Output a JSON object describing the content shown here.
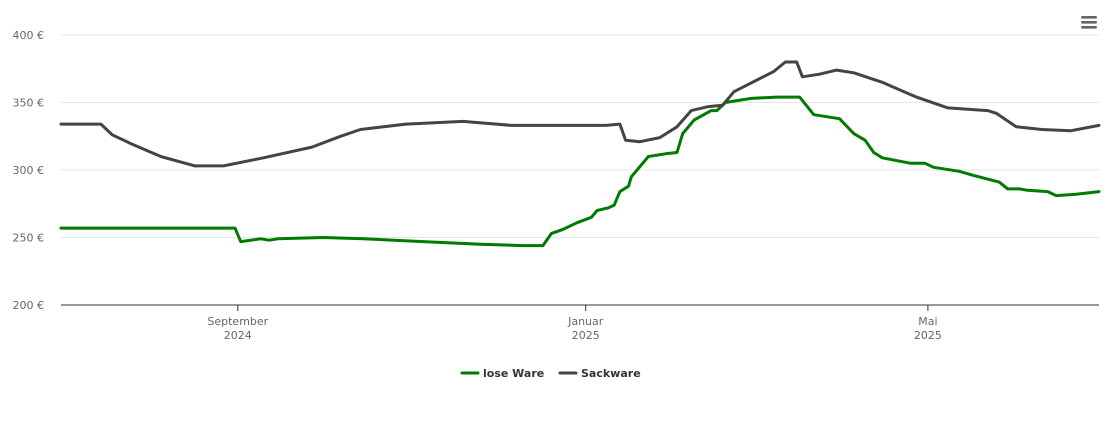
{
  "chart_data": {
    "type": "line",
    "yticks": [
      "200 €",
      "250 €",
      "300 €",
      "350 €",
      "400 €"
    ],
    "ylim": [
      200,
      400
    ],
    "xlim": [
      "2024-07-01",
      "2025-06-30"
    ],
    "xticks": [
      {
        "month": "September",
        "year": "2024",
        "date": "2024-09-01"
      },
      {
        "month": "Januar",
        "year": "2025",
        "date": "2025-01-01"
      },
      {
        "month": "Mai",
        "year": "2025",
        "date": "2025-05-01"
      }
    ],
    "grid": true,
    "legend_position": "bottom-center",
    "series": [
      {
        "name": "lose Ware",
        "color": "#007a00",
        "points": [
          [
            "2024-07-01",
            257
          ],
          [
            "2024-08-31",
            257
          ],
          [
            "2024-09-02",
            247
          ],
          [
            "2024-09-09",
            249
          ],
          [
            "2024-09-12",
            248
          ],
          [
            "2024-09-15",
            249
          ],
          [
            "2024-10-01",
            250
          ],
          [
            "2024-10-15",
            249
          ],
          [
            "2024-11-05",
            247
          ],
          [
            "2024-11-25",
            245
          ],
          [
            "2024-12-10",
            244
          ],
          [
            "2024-12-17",
            244
          ],
          [
            "2024-12-20",
            253
          ],
          [
            "2024-12-24",
            256
          ],
          [
            "2024-12-29",
            261
          ],
          [
            "2025-01-03",
            265
          ],
          [
            "2025-01-05",
            270
          ],
          [
            "2025-01-09",
            272
          ],
          [
            "2025-01-11",
            274
          ],
          [
            "2025-01-13",
            284
          ],
          [
            "2025-01-16",
            288
          ],
          [
            "2025-01-17",
            295
          ],
          [
            "2025-01-23",
            310
          ],
          [
            "2025-01-29",
            312
          ],
          [
            "2025-02-02",
            313
          ],
          [
            "2025-02-04",
            327
          ],
          [
            "2025-02-08",
            337
          ],
          [
            "2025-02-14",
            344
          ],
          [
            "2025-02-16",
            344
          ],
          [
            "2025-02-19",
            350
          ],
          [
            "2025-02-28",
            353
          ],
          [
            "2025-03-09",
            354
          ],
          [
            "2025-03-17",
            354
          ],
          [
            "2025-03-22",
            341
          ],
          [
            "2025-03-31",
            338
          ],
          [
            "2025-04-05",
            327
          ],
          [
            "2025-04-09",
            322
          ],
          [
            "2025-04-12",
            313
          ],
          [
            "2025-04-15",
            309
          ],
          [
            "2025-04-25",
            305
          ],
          [
            "2025-04-30",
            305
          ],
          [
            "2025-05-03",
            302
          ],
          [
            "2025-05-12",
            299
          ],
          [
            "2025-05-17",
            296
          ],
          [
            "2025-05-26",
            291
          ],
          [
            "2025-05-29",
            286
          ],
          [
            "2025-06-02",
            286
          ],
          [
            "2025-06-05",
            285
          ],
          [
            "2025-06-12",
            284
          ],
          [
            "2025-06-15",
            281
          ],
          [
            "2025-06-22",
            282
          ],
          [
            "2025-06-30",
            284
          ]
        ]
      },
      {
        "name": "Sackware",
        "color": "#444444",
        "points": [
          [
            "2024-07-01",
            334
          ],
          [
            "2024-07-15",
            334
          ],
          [
            "2024-07-19",
            326
          ],
          [
            "2024-07-26",
            319
          ],
          [
            "2024-08-05",
            310
          ],
          [
            "2024-08-17",
            303
          ],
          [
            "2024-08-27",
            303
          ],
          [
            "2024-09-10",
            309
          ],
          [
            "2024-09-27",
            317
          ],
          [
            "2024-10-07",
            325
          ],
          [
            "2024-10-14",
            330
          ],
          [
            "2024-10-30",
            334
          ],
          [
            "2024-11-19",
            336
          ],
          [
            "2024-12-06",
            333
          ],
          [
            "2024-12-31",
            333
          ],
          [
            "2025-01-08",
            333
          ],
          [
            "2025-01-13",
            334
          ],
          [
            "2025-01-15",
            322
          ],
          [
            "2025-01-20",
            321
          ],
          [
            "2025-01-27",
            324
          ],
          [
            "2025-02-02",
            332
          ],
          [
            "2025-02-07",
            344
          ],
          [
            "2025-02-13",
            347
          ],
          [
            "2025-02-18",
            348
          ],
          [
            "2025-02-22",
            358
          ],
          [
            "2025-03-08",
            373
          ],
          [
            "2025-03-12",
            380
          ],
          [
            "2025-03-16",
            380
          ],
          [
            "2025-03-18",
            369
          ],
          [
            "2025-03-24",
            371
          ],
          [
            "2025-03-30",
            374
          ],
          [
            "2025-04-05",
            372
          ],
          [
            "2025-04-15",
            365
          ],
          [
            "2025-04-27",
            354
          ],
          [
            "2025-05-08",
            346
          ],
          [
            "2025-05-22",
            344
          ],
          [
            "2025-05-25",
            342
          ],
          [
            "2025-06-01",
            332
          ],
          [
            "2025-06-10",
            330
          ],
          [
            "2025-06-20",
            329
          ],
          [
            "2025-06-30",
            333
          ]
        ]
      }
    ]
  },
  "toolbar": {
    "menu_icon": "hamburger-menu-icon"
  }
}
